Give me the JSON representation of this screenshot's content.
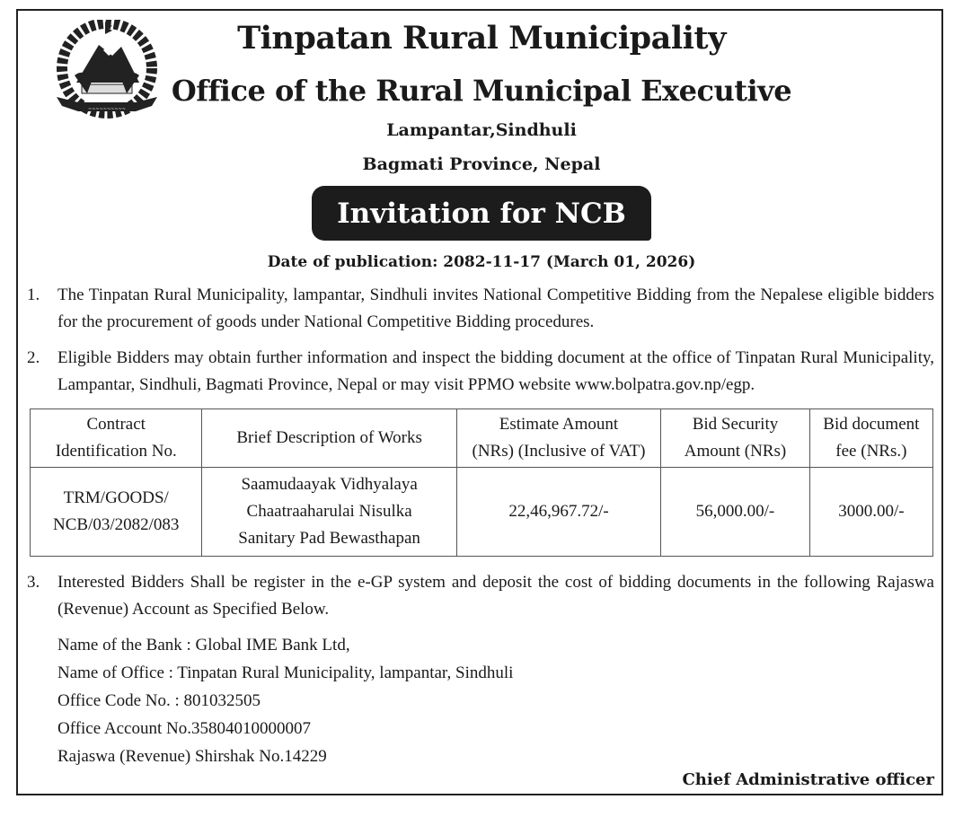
{
  "header": {
    "title": "Tinpatan Rural Municipality",
    "subtitle": "Office of the Rural Municipal Executive",
    "address_line1": "Lampantar,Sindhuli",
    "address_line2": "Bagmati Province, Nepal",
    "notice_title": "Invitation for NCB",
    "publication_date": "Date of publication: 2082-11-17 (March 01, 2026)",
    "logo": "nepal-government-emblem-icon"
  },
  "paragraphs": [
    {
      "num": "1.",
      "text": "The Tinpatan Rural Municipality, lampantar, Sindhuli invites National Competitive Bidding from the Nepalese eligible bidders for the procurement of goods under National Competitive Bidding procedures."
    },
    {
      "num": "2.",
      "text": "Eligible Bidders may obtain further information and inspect the bidding document at the office of Tinpatan Rural Municipality, Lampantar, Sindhuli, Bagmati Province, Nepal or may visit  PPMO website www.bolpatra.gov.np/egp."
    },
    {
      "num": "3.",
      "text": "Interested Bidders Shall be register in the e-GP system and deposit the cost of bidding documents in the following Rajaswa (Revenue) Account as Specified Below."
    }
  ],
  "table": {
    "headers": [
      [
        "Contract",
        "Identification No."
      ],
      [
        "Brief Description of Works"
      ],
      [
        "Estimate Amount",
        "(NRs) (Inclusive of VAT)"
      ],
      [
        "Bid Security",
        "Amount (NRs)"
      ],
      [
        "Bid document",
        "fee (NRs.)"
      ]
    ],
    "rows": [
      [
        [
          "TRM/GOODS/",
          "NCB/03/2082/083"
        ],
        [
          "Saamudaayak Vidhyalaya",
          "Chaatraaharulai Nisulka",
          "Sanitary Pad Bewasthapan"
        ],
        [
          "22,46,967.72/-"
        ],
        [
          "56,000.00/-"
        ],
        [
          "3000.00/-"
        ]
      ]
    ]
  },
  "bank_details": [
    "Name of the Bank : Global IME Bank Ltd,",
    "Name of Office : Tinpatan Rural Municipality, lampantar, Sindhuli",
    "Office Code No. : 801032505",
    "Office Account No.35804010000007",
    "Rajaswa (Revenue) Shirshak No.14229"
  ],
  "signature": "Chief Administrative officer"
}
